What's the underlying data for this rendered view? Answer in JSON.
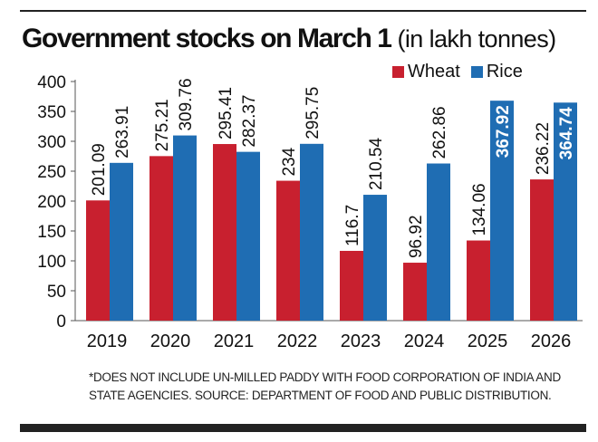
{
  "title": {
    "main": "Government stocks on March 1",
    "unit": " (in lakh tonnes)"
  },
  "legend": [
    {
      "label": "Wheat",
      "color": "#c8202f"
    },
    {
      "label": "Rice",
      "color": "#1f6db3"
    }
  ],
  "chart_data": {
    "type": "bar",
    "title": "Government stocks on March 1 (in lakh tonnes)",
    "xlabel": "",
    "ylabel": "",
    "ylim": [
      0,
      400
    ],
    "yticks": [
      0,
      50,
      100,
      150,
      200,
      250,
      300,
      350,
      400
    ],
    "categories": [
      "2019",
      "2020",
      "2021",
      "2022",
      "2023",
      "2024",
      "2025",
      "2026"
    ],
    "series": [
      {
        "name": "Wheat",
        "color": "#c8202f",
        "values": [
          201.09,
          275.21,
          295.41,
          234,
          116.7,
          96.92,
          134.06,
          236.22
        ],
        "labels": [
          "201.09",
          "275.21",
          "295.41",
          "234",
          "116.7",
          "96.92",
          "134.06",
          "236.22"
        ]
      },
      {
        "name": "Rice",
        "color": "#1f6db3",
        "values": [
          263.91,
          309.76,
          282.37,
          295.75,
          210.54,
          262.86,
          367.92,
          364.74
        ],
        "labels": [
          "263.91",
          "309.76",
          "282.37",
          "295.75",
          "210.54",
          "262.86",
          "367.92",
          "364.74"
        ]
      }
    ],
    "legend_position": "top-right"
  },
  "footnote": "*DOES NOT INCLUDE UN-MILLED PADDY WITH FOOD CORPORATION OF INDIA AND STATE AGENCIES. SOURCE: DEPARTMENT OF FOOD AND PUBLIC DISTRIBUTION."
}
